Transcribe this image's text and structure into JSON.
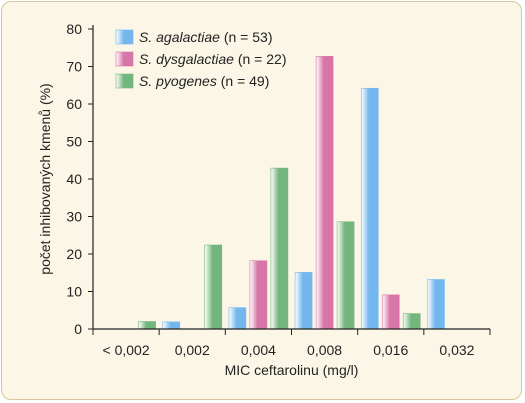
{
  "chart_data": {
    "type": "bar",
    "categories": [
      "< 0,002",
      "0,002",
      "0,004",
      "0,008",
      "0,016",
      "0,032"
    ],
    "series": [
      {
        "name": "S. agalactiae",
        "label_suffix": " (n = 53)",
        "color": "#74b7ee",
        "values": [
          0,
          1.9,
          5.7,
          15.1,
          64.2,
          13.2
        ]
      },
      {
        "name": "S. dysgalactiae",
        "label_suffix": " (n = 22)",
        "color": "#d774a8",
        "values": [
          0,
          0,
          18.2,
          72.7,
          9.1,
          0
        ]
      },
      {
        "name": "S. pyogenes",
        "label_suffix": " (n = 49)",
        "color": "#73b67d",
        "values": [
          2.0,
          22.4,
          42.9,
          28.6,
          4.1,
          0
        ]
      }
    ],
    "xlabel": "MIC ceftarolinu (mg/l)",
    "ylabel": "počet inhibovaných kmenů (%)",
    "ylim": [
      0,
      80
    ],
    "yticks": [
      "0",
      "10",
      "20",
      "30",
      "40",
      "50",
      "60",
      "70",
      "80"
    ],
    "grid": false,
    "legend_position": "top-left"
  }
}
